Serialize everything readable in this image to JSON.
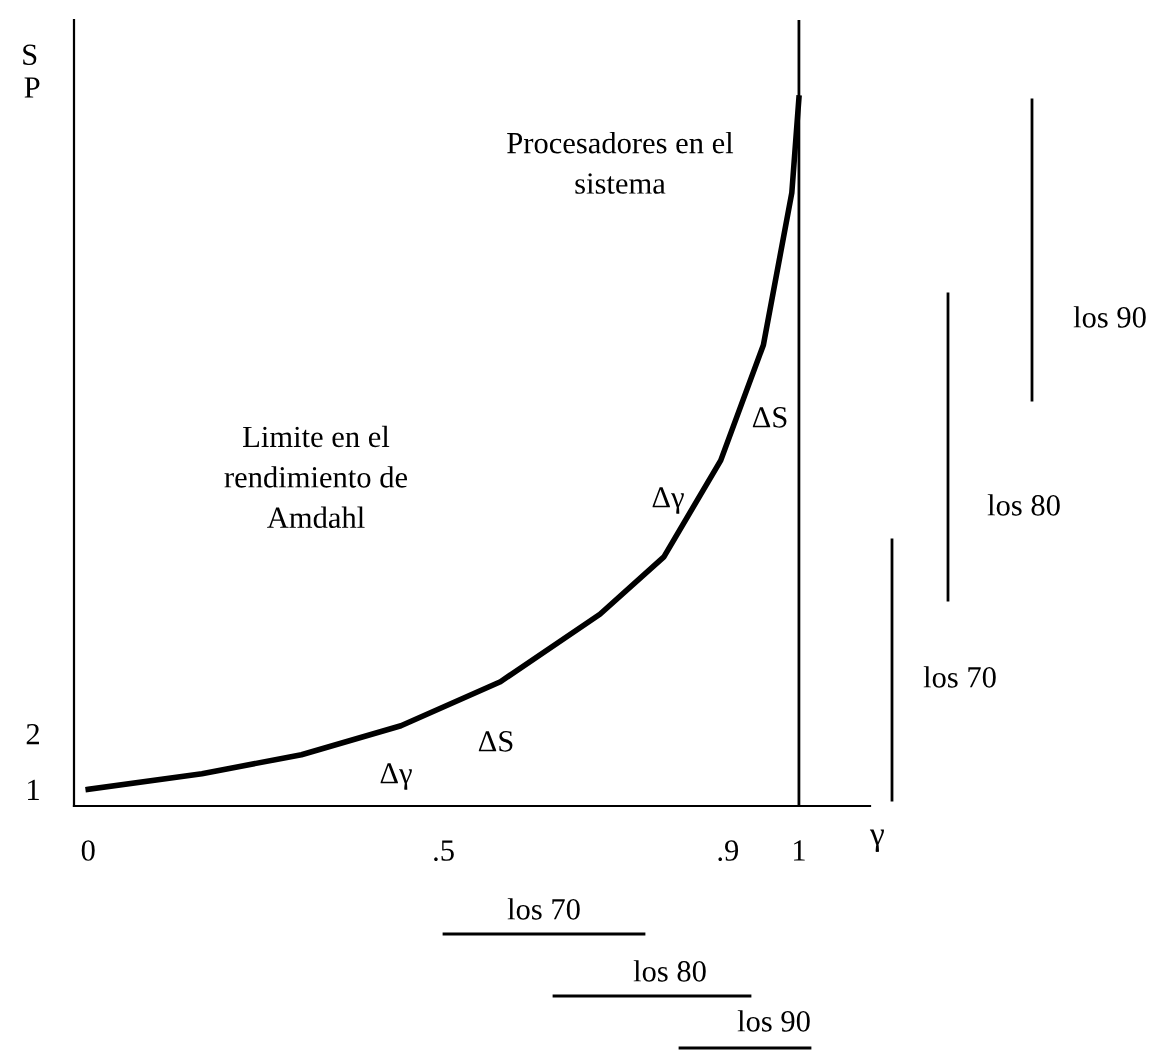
{
  "chart_data": {
    "type": "line",
    "xlabel": "γ",
    "ylabel": "S",
    "x": [
      0,
      0.16,
      0.3,
      0.44,
      0.58,
      0.72,
      0.81,
      0.89,
      0.95,
      0.99,
      1.0
    ],
    "series": [
      {
        "color": "#000000",
        "values": [
          1.0,
          1.28,
          1.62,
          2.14,
          2.93,
          4.14,
          5.17,
          6.9,
          8.97,
          11.7,
          13.4
        ]
      }
    ],
    "xlim": [
      -0.02,
      1.1
    ],
    "ylim": [
      0.7,
      14.8
    ],
    "xticks": [
      0,
      {
        "value": 0.5,
        "label": ".5"
      },
      {
        "value": 0.9,
        "label": ".9"
      },
      1
    ],
    "yticks": [
      1,
      2,
      {
        "value": 13.6,
        "label": "P"
      }
    ],
    "ref_lines": [
      {
        "axis": "x",
        "value": 1,
        "color": "#000000"
      }
    ],
    "grid": false,
    "marker": "none",
    "line_style": "solid",
    "annotations": [
      "Procesadores en el\nsistema",
      "Limite en el\nrendimiento de\nAmdahl",
      "los 90",
      "los 80",
      "los 70",
      "los 70",
      "los 80",
      "los 90",
      "ΔS",
      "Δγ",
      "ΔS",
      "Δγ"
    ]
  }
}
